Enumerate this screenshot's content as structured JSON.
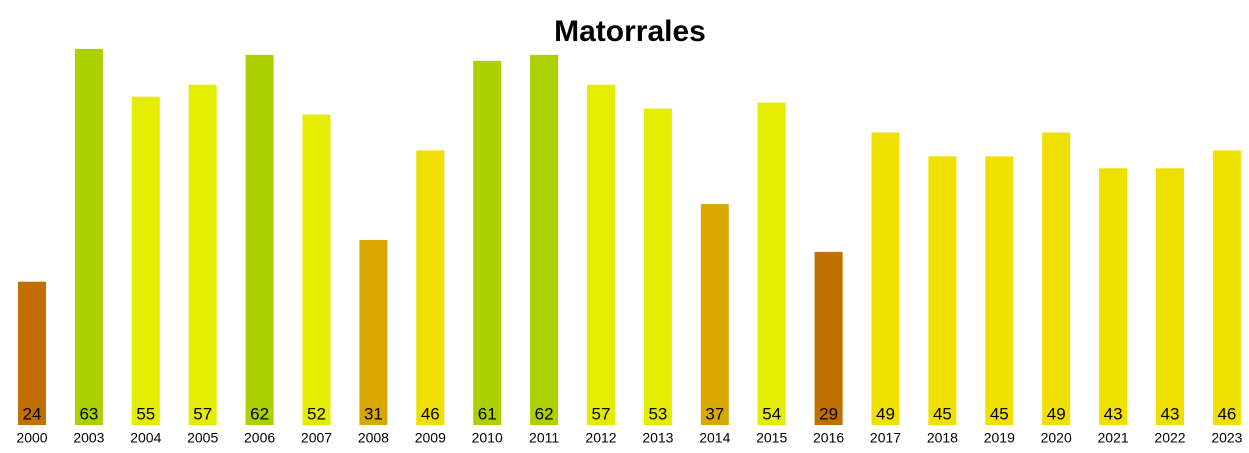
{
  "chart_data": {
    "type": "bar",
    "title": "Matorrales",
    "categories": [
      "2000",
      "2003",
      "2004",
      "2005",
      "2006",
      "2007",
      "2008",
      "2009",
      "2010",
      "2011",
      "2012",
      "2013",
      "2014",
      "2015",
      "2016",
      "2017",
      "2018",
      "2019",
      "2020",
      "2021",
      "2022",
      "2023"
    ],
    "values": [
      24,
      63,
      55,
      57,
      62,
      52,
      31,
      46,
      61,
      62,
      57,
      53,
      37,
      54,
      29,
      49,
      45,
      45,
      49,
      43,
      43,
      46
    ],
    "colors": [
      "#c07000",
      "#acd000",
      "#e4ec00",
      "#e4ec00",
      "#acd000",
      "#e4ec00",
      "#d8a800",
      "#f0e000",
      "#acd000",
      "#acd000",
      "#e4ec00",
      "#e4ec00",
      "#d8a800",
      "#e4ec00",
      "#c07000",
      "#f0e000",
      "#f0e000",
      "#f0e000",
      "#f0e000",
      "#f0e000",
      "#f0e000",
      "#f0e000"
    ]
  }
}
